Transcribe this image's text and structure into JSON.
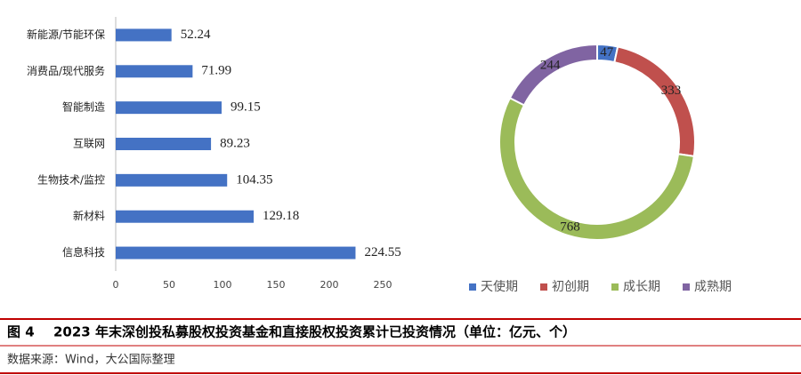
{
  "chart_data": [
    {
      "type": "hbar",
      "categories": [
        "新能源/节能环保",
        "消费品/现代服务",
        "智能制造",
        "互联网",
        "生物技术/监控",
        "新材料",
        "信息科技"
      ],
      "values": [
        52.24,
        71.99,
        99.15,
        89.23,
        104.35,
        129.18,
        224.55
      ],
      "color": "#4472c4",
      "xlim": [
        0,
        250
      ],
      "xticks": [
        0,
        50,
        100,
        150,
        200,
        250
      ]
    },
    {
      "type": "donut",
      "categories": [
        "天使期",
        "初创期",
        "成长期",
        "成熟期"
      ],
      "values": [
        47,
        333,
        768,
        244
      ],
      "colors": [
        "#4472c4",
        "#c0504d",
        "#9bbb59",
        "#8064a2"
      ],
      "legend": "bottom"
    }
  ],
  "figure": {
    "label": "图 4",
    "title": "2023 年末深创投私募股权投资基金和直接股权投资累计已投资情况（单位：亿元、个）",
    "source": "数据来源：Wind，大公国际整理"
  }
}
